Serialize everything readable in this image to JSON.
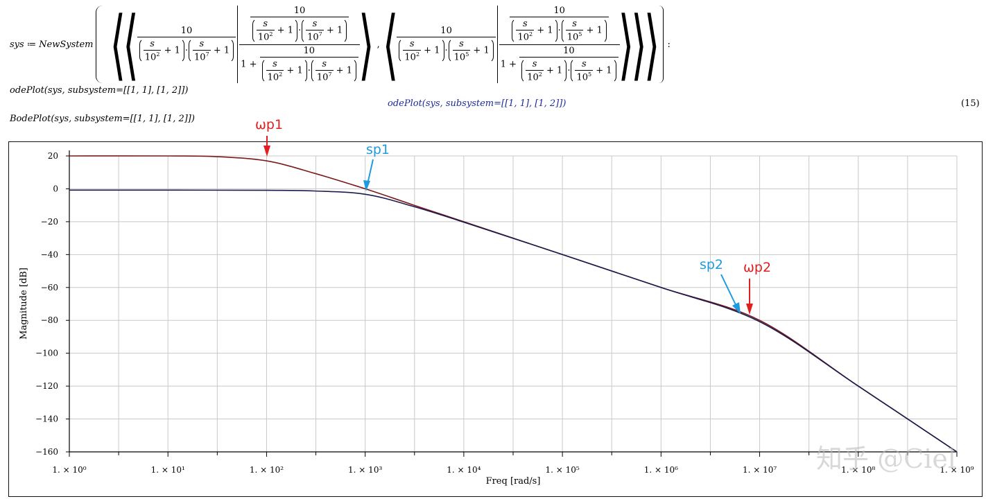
{
  "math": {
    "assign_lhs": "sys",
    "assign_op": "≔",
    "func": "NewSystem",
    "num10": "10",
    "one": "1",
    "plus": "+",
    "s": "s",
    "ten": "10",
    "exp2": "2",
    "exp5": "5",
    "exp7": "7",
    "comma": ",",
    "colon": ":"
  },
  "commands": {
    "ode_input": "odePlot(sys, subsystem=[[1, 1], [1, 2]])",
    "ode_output": "odePlot(sys, subsystem=[[1, 1], [1, 2]])",
    "eq_number": "(15)",
    "bode_input": "BodePlot(sys, subsystem=[[1, 1], [1, 2]])"
  },
  "colors": {
    "series1": "#7a1a1a",
    "series2": "#1a1a4e",
    "annotation_red": "#e02020",
    "annotation_blue": "#1e9be0",
    "grid": "#c8c8c8"
  },
  "annotations": {
    "wp1": "ωp1",
    "sp1": "sp1",
    "sp2": "sp2",
    "wp2": "ωp2"
  },
  "watermark": "知乎 @Ciel",
  "chart_data": {
    "type": "line",
    "xlabel": "Freq [rad/s]",
    "ylabel": "Magnitude [dB]",
    "x_scale": "log",
    "xlim": [
      1,
      1000000000
    ],
    "ylim": [
      -160,
      20
    ],
    "y_ticks": [
      20,
      0,
      -20,
      -40,
      -60,
      -80,
      -100,
      -120,
      -140,
      -160
    ],
    "y_tick_labels": [
      "20",
      "0",
      "−20",
      "−40",
      "−60",
      "−80",
      "−100",
      "−120",
      "−140",
      "−160"
    ],
    "x_ticks": [
      1,
      10,
      100,
      1000,
      10000,
      100000,
      1000000,
      10000000,
      100000000,
      1000000000
    ],
    "x_tick_labels": [
      "1. × 10⁰",
      "1. × 10¹",
      "1. × 10²",
      "1. × 10³",
      "1. × 10⁴",
      "1. × 10⁵",
      "1. × 10⁶",
      "1. × 10⁷",
      "1. × 10⁸",
      "1. × 10⁹"
    ],
    "grid": true,
    "series": [
      {
        "x": [
          1,
          10,
          30,
          100,
          300,
          1000,
          3000,
          10000,
          100000,
          1000000,
          10000000,
          100000000,
          1000000000
        ],
        "y": [
          20,
          20,
          19.6,
          17,
          9.6,
          0,
          -9.6,
          -20,
          -40,
          -60,
          -80,
          -120,
          -160
        ]
      },
      {
        "x": [
          1,
          10,
          100,
          300,
          1000,
          3000,
          10000,
          100000,
          1000000,
          10000000,
          100000000,
          1000000000
        ],
        "y": [
          -0.8,
          -0.8,
          -0.9,
          -1.3,
          -3.3,
          -10.5,
          -20.3,
          -40,
          -60,
          -80.8,
          -120,
          -160
        ]
      }
    ]
  }
}
